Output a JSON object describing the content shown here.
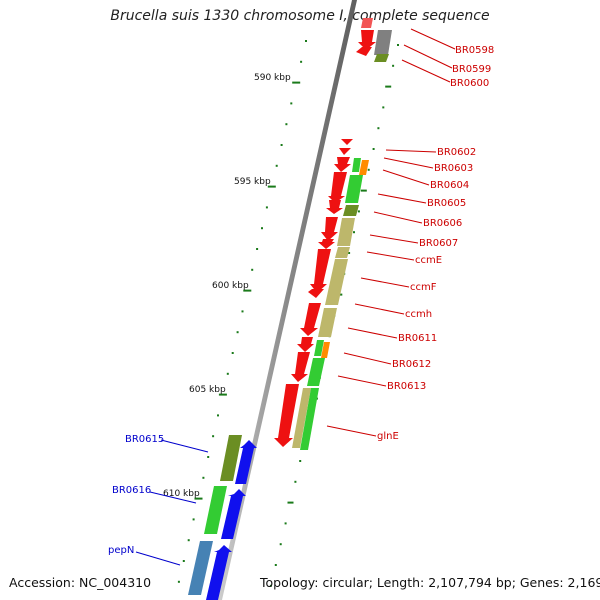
{
  "title": "Brucella suis 1330 chromosome I, complete sequence",
  "accession": "Accession: NC_004310",
  "topology": "Topology: circular; Length: 2,107,794 bp; Genes: 2,169",
  "colors": {
    "backbone": "#8a8a8a",
    "tick": "#1a7a1a",
    "label_reverse": "#cc0000",
    "label_forward": "#0000cc",
    "gene_red": "#ee1111",
    "gene_blue": "#1010ee",
    "gene_green": "#33cc33",
    "gene_olive": "#6b8e23",
    "gene_khaki": "#bdb76b",
    "gene_orange": "#ff8c00",
    "gene_gray": "#808080",
    "gene_steel": "#4682b4"
  },
  "scale_ticks": [
    {
      "label": "590 kbp"
    },
    {
      "label": "595 kbp"
    },
    {
      "label": "600 kbp"
    },
    {
      "label": "605 kbp"
    },
    {
      "label": "610 kbp"
    }
  ],
  "gene_labels_right": [
    "BR0598",
    "BR0599",
    "BR0600",
    "BR0602",
    "BR0603",
    "BR0604",
    "BR0605",
    "BR0606",
    "BR0607",
    "ccmE",
    "ccmF",
    "ccmh",
    "BR0611",
    "BR0612",
    "BR0613",
    "glnE"
  ],
  "gene_labels_left": [
    "BR0615",
    "BR0616",
    "pepN"
  ]
}
